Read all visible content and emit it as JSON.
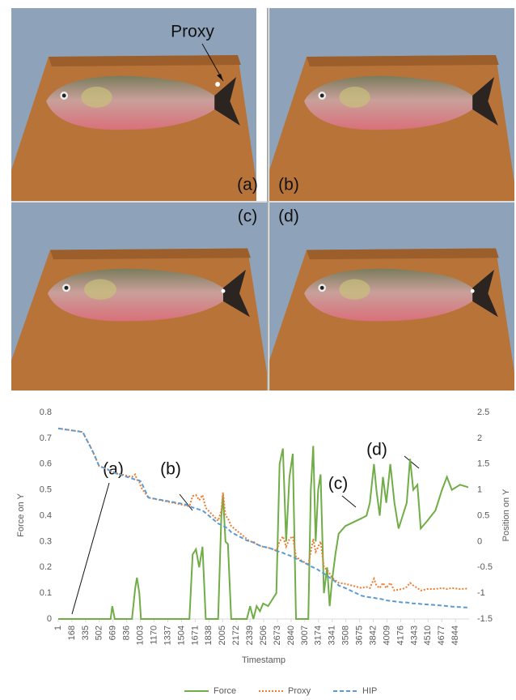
{
  "figure": {
    "proxy_label": "Proxy",
    "panel_labels": [
      "(a)",
      "(b)",
      "(c)",
      "(d)"
    ]
  },
  "chart_data": {
    "type": "line",
    "x_label": "Timestamp",
    "y_label": "Force on Y",
    "y2_label": "Position on Y",
    "annotations": [
      "(a)",
      "(b)",
      "(c)",
      "(d)"
    ],
    "legend": "bottom",
    "xlim": [
      1,
      5010
    ],
    "xticks": [
      1,
      168,
      335,
      502,
      669,
      836,
      1003,
      1170,
      1337,
      1504,
      1671,
      1838,
      2005,
      2172,
      2339,
      2506,
      2673,
      2840,
      3007,
      3174,
      3341,
      3508,
      3675,
      3842,
      4009,
      4176,
      4343,
      4510,
      4677,
      4844
    ],
    "ylim": [
      0,
      0.8
    ],
    "yticks": [
      0,
      0.1,
      0.2,
      0.3,
      0.4,
      0.5,
      0.6,
      0.7,
      0.8
    ],
    "y2lim": [
      -1.5,
      2.5
    ],
    "y2ticks": [
      -1.5,
      -1,
      -0.5,
      0,
      0.5,
      1,
      1.5,
      2,
      2.5
    ],
    "x": [
      1,
      300,
      420,
      500,
      600,
      640,
      660,
      690,
      900,
      940,
      960,
      990,
      1010,
      1100,
      1550,
      1600,
      1640,
      1680,
      1720,
      1760,
      1800,
      1950,
      1990,
      2010,
      2040,
      2070,
      2110,
      2300,
      2340,
      2380,
      2420,
      2460,
      2500,
      2560,
      2620,
      2660,
      2700,
      2740,
      2780,
      2820,
      2860,
      2900,
      3050,
      3080,
      3110,
      3140,
      3170,
      3200,
      3240,
      3280,
      3310,
      3340,
      3380,
      3420,
      3500,
      3700,
      3760,
      3800,
      3850,
      3880,
      3920,
      3960,
      4000,
      4050,
      4100,
      4150,
      4200,
      4250,
      4290,
      4330,
      4380,
      4420,
      4500,
      4600,
      4680,
      4740,
      4800,
      4900,
      5000
    ],
    "series": [
      {
        "name": "Force",
        "color": "#70ad47",
        "dash": "none",
        "values": [
          0,
          0,
          0,
          0,
          0,
          0,
          0.05,
          0,
          0,
          0.12,
          0.16,
          0.1,
          0,
          0,
          0,
          0,
          0.25,
          0.27,
          0.2,
          0.28,
          0,
          0,
          0.4,
          0.48,
          0.3,
          0.29,
          0,
          0,
          0.05,
          0,
          0.05,
          0.03,
          0.06,
          0.05,
          0.08,
          0.1,
          0.6,
          0.66,
          0.3,
          0.55,
          0.64,
          0,
          0,
          0.5,
          0.67,
          0.3,
          0.5,
          0.56,
          0.1,
          0.2,
          0.05,
          0.15,
          0.25,
          0.33,
          0.36,
          0.39,
          0.4,
          0.45,
          0.6,
          0.5,
          0.4,
          0.55,
          0.45,
          0.6,
          0.45,
          0.35,
          0.4,
          0.45,
          0.62,
          0.5,
          0.52,
          0.35,
          0.38,
          0.42,
          0.5,
          0.55,
          0.5,
          0.52,
          0.51
        ]
      },
      {
        "name": "Proxy",
        "color": "#ed7d31",
        "dash": "2,2",
        "axis": "y2",
        "values": [
          2.19,
          2.12,
          1.75,
          1.46,
          1.4,
          1.36,
          1.35,
          1.33,
          1.25,
          1.3,
          1.2,
          1.15,
          1.05,
          0.85,
          0.7,
          0.68,
          0.88,
          0.9,
          0.8,
          0.9,
          0.65,
          0.4,
          0.6,
          0.95,
          0.5,
          0.45,
          0.3,
          0.05,
          0,
          0,
          -0.05,
          -0.08,
          -0.1,
          -0.12,
          -0.15,
          -0.18,
          0,
          0.1,
          -0.1,
          0.05,
          0.1,
          -0.3,
          -0.45,
          -0.2,
          0.05,
          -0.2,
          -0.1,
          0,
          -0.5,
          -0.55,
          -0.62,
          -0.7,
          -0.75,
          -0.8,
          -0.82,
          -0.9,
          -0.88,
          -0.9,
          -0.72,
          -0.85,
          -0.9,
          -0.8,
          -0.9,
          -0.8,
          -0.95,
          -0.93,
          -0.92,
          -0.88,
          -0.8,
          -0.85,
          -0.9,
          -0.95,
          -0.92,
          -0.92,
          -0.9,
          -0.92,
          -0.9,
          -0.92,
          -0.91
        ]
      },
      {
        "name": "HIP",
        "color": "#5b9bd5",
        "dash": "5,3",
        "axis": "y2",
        "values": [
          2.19,
          2.12,
          1.75,
          1.46,
          1.4,
          1.36,
          1.35,
          1.33,
          1.22,
          1.2,
          1.19,
          1.18,
          1.16,
          0.85,
          0.72,
          0.68,
          0.66,
          0.64,
          0.62,
          0.6,
          0.55,
          0.35,
          0.32,
          0.3,
          0.28,
          0.25,
          0.18,
          0.02,
          0,
          -0.02,
          -0.05,
          -0.08,
          -0.1,
          -0.12,
          -0.15,
          -0.18,
          -0.2,
          -0.22,
          -0.25,
          -0.27,
          -0.3,
          -0.33,
          -0.45,
          -0.48,
          -0.5,
          -0.52,
          -0.55,
          -0.58,
          -0.62,
          -0.66,
          -0.7,
          -0.72,
          -0.78,
          -0.85,
          -0.9,
          -1.05,
          -1.07,
          -1.08,
          -1.09,
          -1.1,
          -1.11,
          -1.12,
          -1.14,
          -1.15,
          -1.16,
          -1.17,
          -1.18,
          -1.18,
          -1.19,
          -1.2,
          -1.2,
          -1.21,
          -1.22,
          -1.23,
          -1.24,
          -1.25,
          -1.26,
          -1.27,
          -1.28
        ]
      }
    ]
  }
}
